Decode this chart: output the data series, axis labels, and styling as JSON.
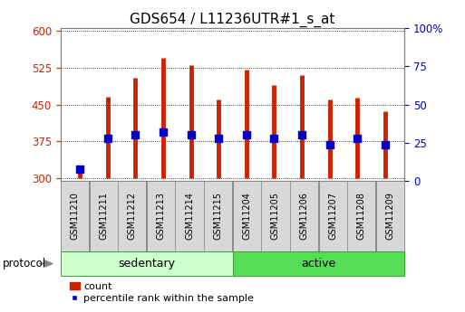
{
  "title": "GDS654 / L11236UTR#1_s_at",
  "samples": [
    "GSM11210",
    "GSM11211",
    "GSM11212",
    "GSM11213",
    "GSM11214",
    "GSM11215",
    "GSM11204",
    "GSM11205",
    "GSM11206",
    "GSM11207",
    "GSM11208",
    "GSM11209"
  ],
  "counts": [
    325,
    465,
    505,
    545,
    530,
    460,
    520,
    490,
    510,
    460,
    463,
    437
  ],
  "percentiles": [
    8,
    28,
    30,
    32,
    30,
    28,
    30,
    28,
    30,
    24,
    28,
    24
  ],
  "n_sedentary": 6,
  "n_active": 6,
  "ylim_left": [
    295,
    605
  ],
  "ylim_right": [
    0,
    100
  ],
  "yticks_left": [
    300,
    375,
    450,
    525,
    600
  ],
  "yticks_right": [
    0,
    25,
    50,
    75,
    100
  ],
  "bar_color": "#cc2200",
  "dot_color": "#0000cc",
  "sedentary_color": "#ccffcc",
  "active_color": "#55dd55",
  "tick_label_color_left": "#cc2200",
  "tick_label_color_right": "#0000cc",
  "bar_linewidth": 3.5,
  "dot_size": 28,
  "legend_items": [
    "count",
    "percentile rank within the sample"
  ],
  "protocol_label": "protocol",
  "sedentary_label": "sedentary",
  "active_label": "active",
  "title_fontsize": 11,
  "label_fontsize": 8,
  "tick_fontsize": 8.5,
  "xtick_fontsize": 7
}
